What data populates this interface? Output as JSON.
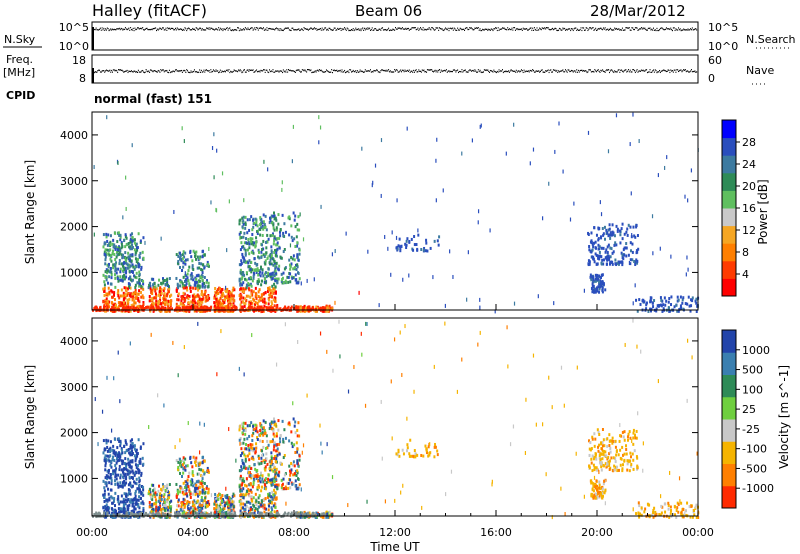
{
  "header": {
    "station": "Halley (fitACF)",
    "beam": "Beam 06",
    "date": "28/Mar/2012"
  },
  "side_labels": {
    "nsky": "N.Sky",
    "freq": "Freq.",
    "freq_unit": "[MHz]",
    "cpid": "CPID",
    "nsearch": "N.Search",
    "nave": "Nave"
  },
  "strip_ticks": {
    "nsky_left": [
      "10^5",
      "10^0"
    ],
    "nsky_right": [
      "10^5",
      "10^0"
    ],
    "freq_left": [
      "18",
      "8"
    ],
    "nave_right": [
      "60",
      "0"
    ]
  },
  "cpid_text": "normal (fast) 151",
  "x_axis": {
    "label": "Time UT",
    "ticks": [
      "00:00",
      "04:00",
      "08:00",
      "12:00",
      "16:00",
      "20:00",
      "00:00"
    ]
  },
  "y_axis": {
    "label": "Slant Range [km]",
    "ticks": [
      "1000",
      "2000",
      "3000",
      "4000"
    ]
  },
  "power_colorbar": {
    "label": "Power [dB]",
    "ticks": [
      "4",
      "8",
      "12",
      "16",
      "20",
      "24",
      "28"
    ],
    "colors": [
      "#0000ff",
      "#2a4ebd",
      "#3c7aa0",
      "#2e8b57",
      "#5fbf5f",
      "#c9c9c9",
      "#f5a623",
      "#ff7f00",
      "#ff3b00",
      "#ff0000"
    ]
  },
  "velocity_colorbar": {
    "label": "Velocity [m s^-1]",
    "ticks": [
      "1000",
      "500",
      "100",
      "25",
      "-25",
      "-100",
      "-500",
      "-1000"
    ],
    "colors": [
      "#2244aa",
      "#3a7fb0",
      "#2e8b57",
      "#6fcf3f",
      "#c8c8c8",
      "#f5b400",
      "#ff7f00",
      "#ff2a00"
    ]
  },
  "chart_data": {
    "type": "heatmap",
    "panels": [
      "Power",
      "Velocity"
    ],
    "x_range": [
      "00:00",
      "24:00"
    ],
    "y_range_km": [
      180,
      4500
    ],
    "power_range_db": [
      0,
      30
    ],
    "velocity_range": [
      -1000,
      1000
    ]
  }
}
